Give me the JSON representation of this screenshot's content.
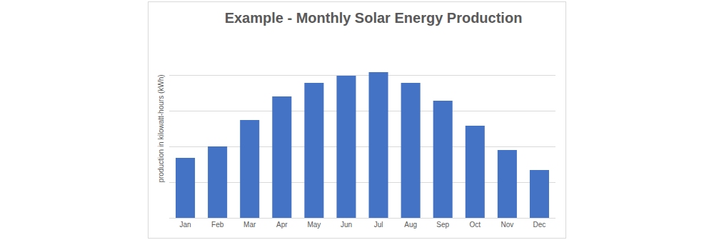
{
  "chart_data": {
    "type": "bar",
    "title": "Example - Monthly Solar Energy Production",
    "y_label": "production in kilowatt-hours (kWh)",
    "categories": [
      "Jan",
      "Feb",
      "Mar",
      "Apr",
      "May",
      "Jun",
      "Jul",
      "Aug",
      "Sep",
      "Oct",
      "Nov",
      "Dec"
    ],
    "values": [
      1.68,
      2.0,
      2.74,
      3.4,
      3.78,
      3.98,
      4.08,
      3.78,
      3.28,
      2.58,
      1.9,
      1.34
    ],
    "color": "#4472c4",
    "ylim": [
      0,
      5
    ],
    "yticks": [
      0,
      1,
      2,
      3,
      4,
      5
    ],
    "grid": true,
    "tick_labels": "x"
  }
}
